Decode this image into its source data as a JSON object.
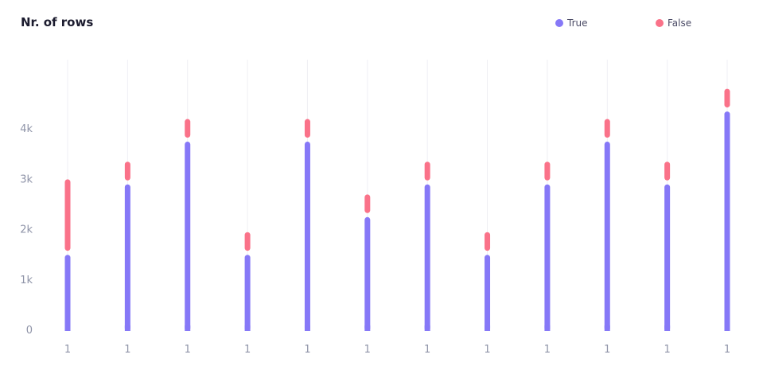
{
  "colors": {
    "true": "#8678f7",
    "false": "#fa7289",
    "grid": "#efeff4",
    "tick": "#8f94a8"
  },
  "chart_data": {
    "type": "bar",
    "stacked": true,
    "title": "Nr. of rows",
    "xlabel": "",
    "ylabel": "",
    "categories": [
      "1",
      "1",
      "1",
      "1",
      "1",
      "1",
      "1",
      "1",
      "1",
      "1",
      "1",
      "1"
    ],
    "series": [
      {
        "name": "True",
        "values": [
          1500,
          2900,
          3750,
          1500,
          3750,
          2250,
          2900,
          1500,
          2900,
          3750,
          2900,
          4350
        ]
      },
      {
        "name": "False",
        "values": [
          1500,
          450,
          450,
          450,
          450,
          450,
          450,
          450,
          450,
          450,
          450,
          450
        ]
      }
    ],
    "y_ticks": [
      "0",
      "1k",
      "2k",
      "3k",
      "4k"
    ],
    "ylim": [
      0,
      5000
    ],
    "legend": "top-right",
    "grid": "vertical"
  }
}
